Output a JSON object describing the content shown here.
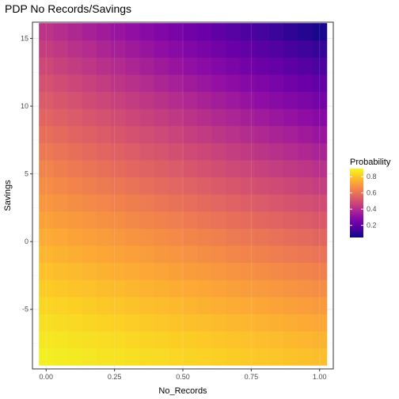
{
  "chart_data": {
    "type": "heatmap",
    "title": "PDP No Records/Savings",
    "xlabel": "No_Records",
    "ylabel": "Savings",
    "xlim": [
      -0.05,
      1.05
    ],
    "ylim": [
      -9.4,
      16.2
    ],
    "x_ticks": [
      0,
      0.25,
      0.5,
      0.75,
      1
    ],
    "x_tick_labels": [
      "0.00",
      "0.25",
      "0.50",
      "0.75",
      "1.00"
    ],
    "y_ticks": [
      -5,
      0,
      5,
      10,
      15
    ],
    "y_tick_labels": [
      "-5",
      "0",
      "5",
      "10",
      "15"
    ],
    "grid": true,
    "x": [
      0,
      0.0526,
      0.1053,
      0.1579,
      0.2105,
      0.2632,
      0.3158,
      0.3684,
      0.4211,
      0.4737,
      0.5263,
      0.5789,
      0.6316,
      0.6842,
      0.7368,
      0.7895,
      0.8421,
      0.8947,
      0.9474,
      1
    ],
    "y_range": [
      -8.5,
      15.5
    ],
    "y_steps": 20,
    "z_model": {
      "bottom_left": 0.88,
      "bottom_right": 0.78,
      "top_left": 0.42,
      "top_right": 0.07,
      "curve": 1.2
    },
    "legend": {
      "title": "Probability",
      "position": "right",
      "range": [
        0.05,
        0.9
      ],
      "breaks": [
        0.2,
        0.4,
        0.6,
        0.8
      ],
      "break_labels": [
        "0.2",
        "0.4",
        "0.6",
        "0.8"
      ],
      "colormap": "plasma"
    },
    "colors": {
      "panel_background": "#ffffff",
      "panel_border": "#333333",
      "grid_major": "#ebebeb",
      "tick_text": "#4d4d4d"
    }
  }
}
